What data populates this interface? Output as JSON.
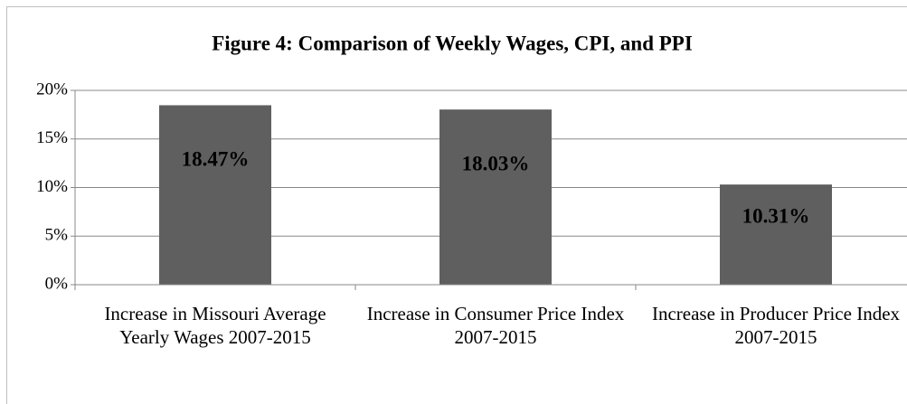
{
  "chart_data": {
    "type": "bar",
    "title": "Figure 4: Comparison of Weekly Wages, CPI, and PPI",
    "categories": [
      "Increase in Missouri Average Yearly Wages 2007-2015",
      "Increase in Consumer Price Index 2007-2015",
      "Increase in Producer Price Index 2007-2015"
    ],
    "values": [
      18.47,
      18.03,
      10.31
    ],
    "value_labels": [
      "18.47%",
      "18.03%",
      "10.31%"
    ],
    "color": "#5f5f5f",
    "ylim": [
      0,
      20
    ],
    "yticks": [
      {
        "value": 0,
        "label": "0%"
      },
      {
        "value": 5,
        "label": "5%"
      },
      {
        "value": 10,
        "label": "10%"
      },
      {
        "value": 15,
        "label": "15%"
      },
      {
        "value": 20,
        "label": "20%"
      }
    ],
    "grid": true
  }
}
